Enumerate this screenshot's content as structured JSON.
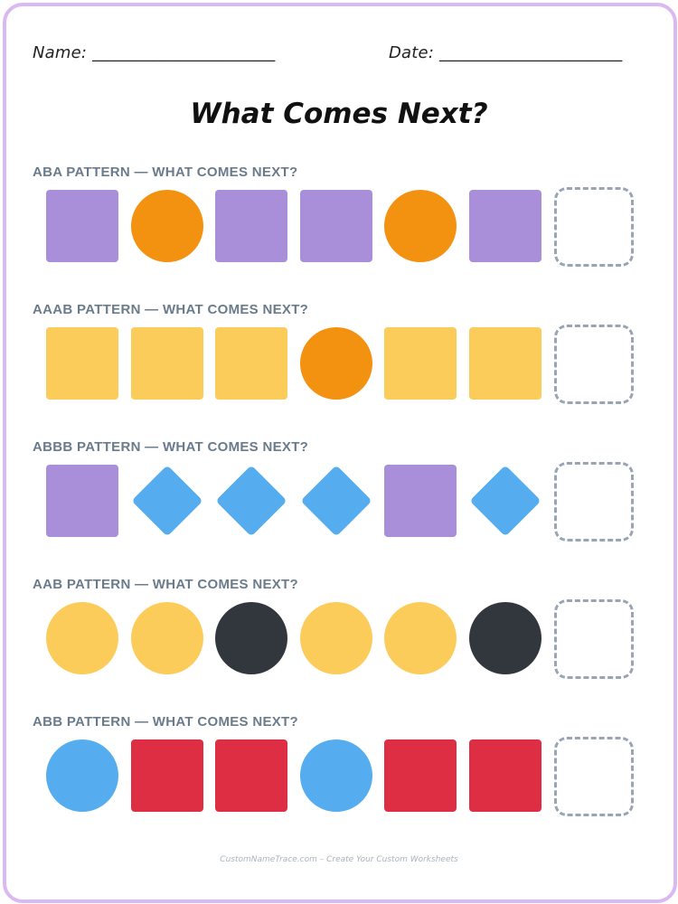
{
  "header": {
    "name_label": "Name: ______________________",
    "date_label": "Date: ______________________"
  },
  "title": "What Comes Next?",
  "colors": {
    "frame": "#d9b8f3",
    "purple": "#a98ed9",
    "orange": "#f39111",
    "yellow": "#fccc5b",
    "blue": "#55acee",
    "black": "#32363d",
    "red": "#dd2e44",
    "answer_box": "#99a5b5"
  },
  "patterns": [
    {
      "label": "ABA PATTERN — WHAT COMES NEXT?",
      "items": [
        {
          "shape": "square",
          "color": "purple"
        },
        {
          "shape": "circle",
          "color": "orange"
        },
        {
          "shape": "square",
          "color": "purple"
        },
        {
          "shape": "square",
          "color": "purple"
        },
        {
          "shape": "circle",
          "color": "orange"
        },
        {
          "shape": "square",
          "color": "purple"
        }
      ]
    },
    {
      "label": "AAAB PATTERN — WHAT COMES NEXT?",
      "items": [
        {
          "shape": "square",
          "color": "yellow"
        },
        {
          "shape": "square",
          "color": "yellow"
        },
        {
          "shape": "square",
          "color": "yellow"
        },
        {
          "shape": "circle",
          "color": "orange"
        },
        {
          "shape": "square",
          "color": "yellow"
        },
        {
          "shape": "square",
          "color": "yellow"
        }
      ]
    },
    {
      "label": "ABBB PATTERN — WHAT COMES NEXT?",
      "items": [
        {
          "shape": "square",
          "color": "purple"
        },
        {
          "shape": "diamond",
          "color": "blue"
        },
        {
          "shape": "diamond",
          "color": "blue"
        },
        {
          "shape": "diamond",
          "color": "blue"
        },
        {
          "shape": "square",
          "color": "purple"
        },
        {
          "shape": "diamond",
          "color": "blue"
        }
      ]
    },
    {
      "label": "AAB PATTERN — WHAT COMES NEXT?",
      "items": [
        {
          "shape": "circle",
          "color": "yellow"
        },
        {
          "shape": "circle",
          "color": "yellow"
        },
        {
          "shape": "circle",
          "color": "black"
        },
        {
          "shape": "circle",
          "color": "yellow"
        },
        {
          "shape": "circle",
          "color": "yellow"
        },
        {
          "shape": "circle",
          "color": "black"
        }
      ]
    },
    {
      "label": "ABB PATTERN — WHAT COMES NEXT?",
      "items": [
        {
          "shape": "circle",
          "color": "blue"
        },
        {
          "shape": "square",
          "color": "red"
        },
        {
          "shape": "square",
          "color": "red"
        },
        {
          "shape": "circle",
          "color": "blue"
        },
        {
          "shape": "square",
          "color": "red"
        },
        {
          "shape": "square",
          "color": "red"
        }
      ]
    }
  ],
  "footer": "CustomNameTrace.com – Create Your Custom Worksheets"
}
